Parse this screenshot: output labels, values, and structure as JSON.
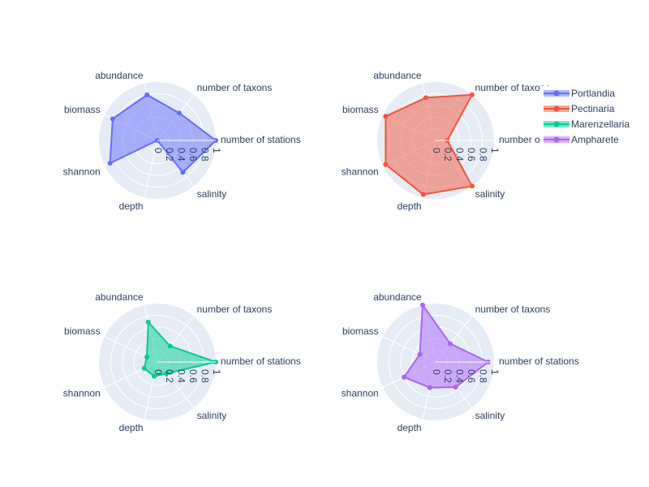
{
  "chart_data": {
    "type": "radar",
    "axes": [
      "number of stations",
      "number of taxons",
      "abundance",
      "biomass",
      "shannon",
      "depth",
      "salinity"
    ],
    "radial_range": [
      0,
      1
    ],
    "radial_ticks": [
      "0",
      "0.2",
      "0.4",
      "0.6",
      "0.8",
      "1"
    ],
    "legend_position": "top-right",
    "series": [
      {
        "name": "Portlandia",
        "color": "#636efa",
        "values": [
          1.0,
          0.6,
          0.8,
          0.85,
          0.9,
          0.0,
          0.7
        ]
      },
      {
        "name": "Pectinaria",
        "color": "#ef553b",
        "values": [
          0.2,
          1.0,
          0.75,
          0.95,
          0.95,
          0.95,
          1.0
        ]
      },
      {
        "name": "Marenzellaria",
        "color": "#00cc96",
        "values": [
          1.0,
          0.35,
          0.7,
          0.2,
          0.25,
          0.25,
          0.25
        ]
      },
      {
        "name": "Ampharete",
        "color": "#ab63fa",
        "values": [
          0.9,
          0.4,
          1.0,
          0.3,
          0.6,
          0.45,
          0.55
        ]
      }
    ]
  }
}
